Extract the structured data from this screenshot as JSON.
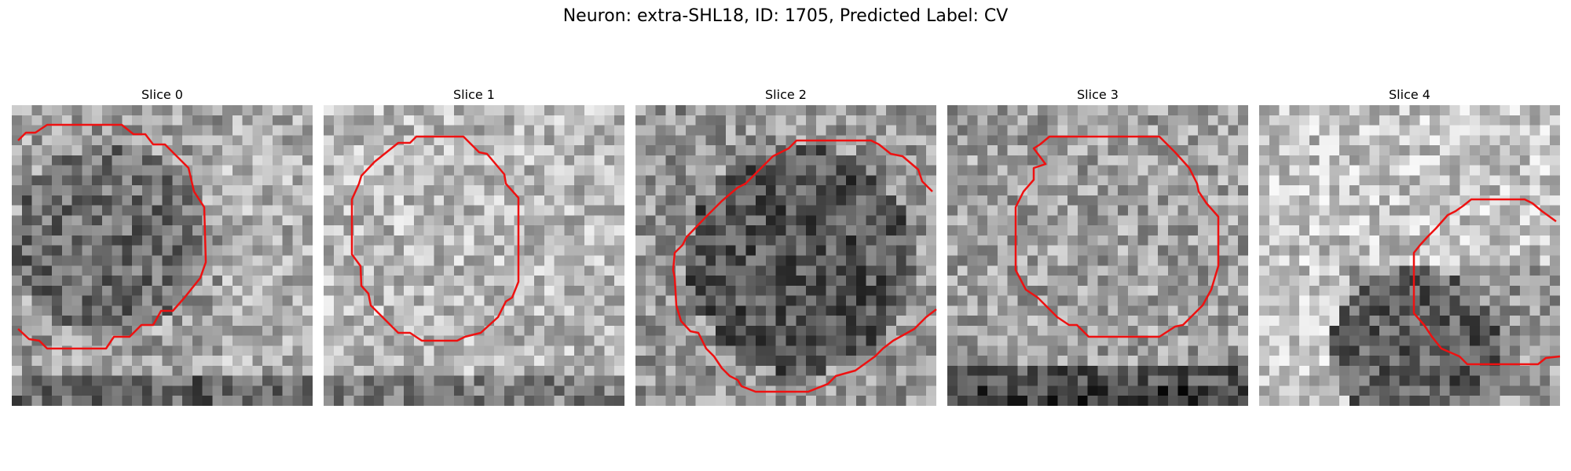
{
  "figure": {
    "title": "Neuron: extra-SHL18, ID: 1705, Predicted Label: CV"
  },
  "colors": {
    "contour": "#ee1111",
    "colormap": "gray"
  },
  "slices": [
    {
      "title": "Slice 0",
      "tone": "mixed-dark"
    },
    {
      "title": "Slice 1",
      "tone": "light"
    },
    {
      "title": "Slice 2",
      "tone": "dark-center"
    },
    {
      "title": "Slice 3",
      "tone": "medium"
    },
    {
      "title": "Slice 4",
      "tone": "light-top-dark-bottom"
    }
  ]
}
